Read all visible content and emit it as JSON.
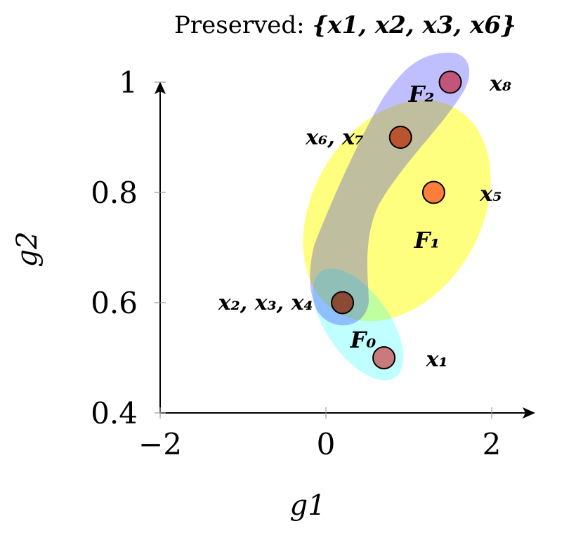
{
  "chart_data": {
    "type": "scatter",
    "title": "Preserved: {x1, x2, x3, x6}",
    "title_prefix": "Preserved: ",
    "title_set": "{x1, x2, x3, x6}",
    "xlabel": "g1",
    "ylabel": "g2",
    "xlim": [
      -2,
      2.5
    ],
    "ylim": [
      0.4,
      1.0
    ],
    "xticks": [
      -2,
      0,
      2
    ],
    "yticks": [
      0.4,
      0.6,
      0.8,
      1.0
    ],
    "xtick_labels": [
      "−2",
      "0",
      "2"
    ],
    "ytick_labels": [
      "0.4",
      "0.6",
      "0.8",
      "1"
    ],
    "grid": false,
    "points": [
      {
        "label": "x1",
        "label_text": "𝒙₁",
        "x": 0.7,
        "y": 0.5,
        "color": "#c97b7b"
      },
      {
        "label": "x2, x3, x4",
        "label_text": "𝒙₂, 𝒙₃, 𝒙₄",
        "x": 0.2,
        "y": 0.6,
        "color": "#8b4a35"
      },
      {
        "label": "x5",
        "label_text": "𝒙₅",
        "x": 1.3,
        "y": 0.8,
        "color": "#ff7f3a"
      },
      {
        "label": "x6, x7",
        "label_text": "𝒙₆, 𝒙₇",
        "x": 0.9,
        "y": 0.9,
        "color": "#b85530"
      },
      {
        "label": "x8",
        "label_text": "𝒙₈",
        "x": 1.5,
        "y": 1.0,
        "color": "#c2567a"
      }
    ],
    "fronts": [
      {
        "name": "F0",
        "label_text": "F₀",
        "color": "#00ffff",
        "opacity": 0.25
      },
      {
        "name": "F1",
        "label_text": "F₁",
        "color": "#ffff00",
        "opacity": 0.5
      },
      {
        "name": "F2",
        "label_text": "F₂",
        "color": "#0000ff",
        "opacity": 0.25
      }
    ]
  }
}
